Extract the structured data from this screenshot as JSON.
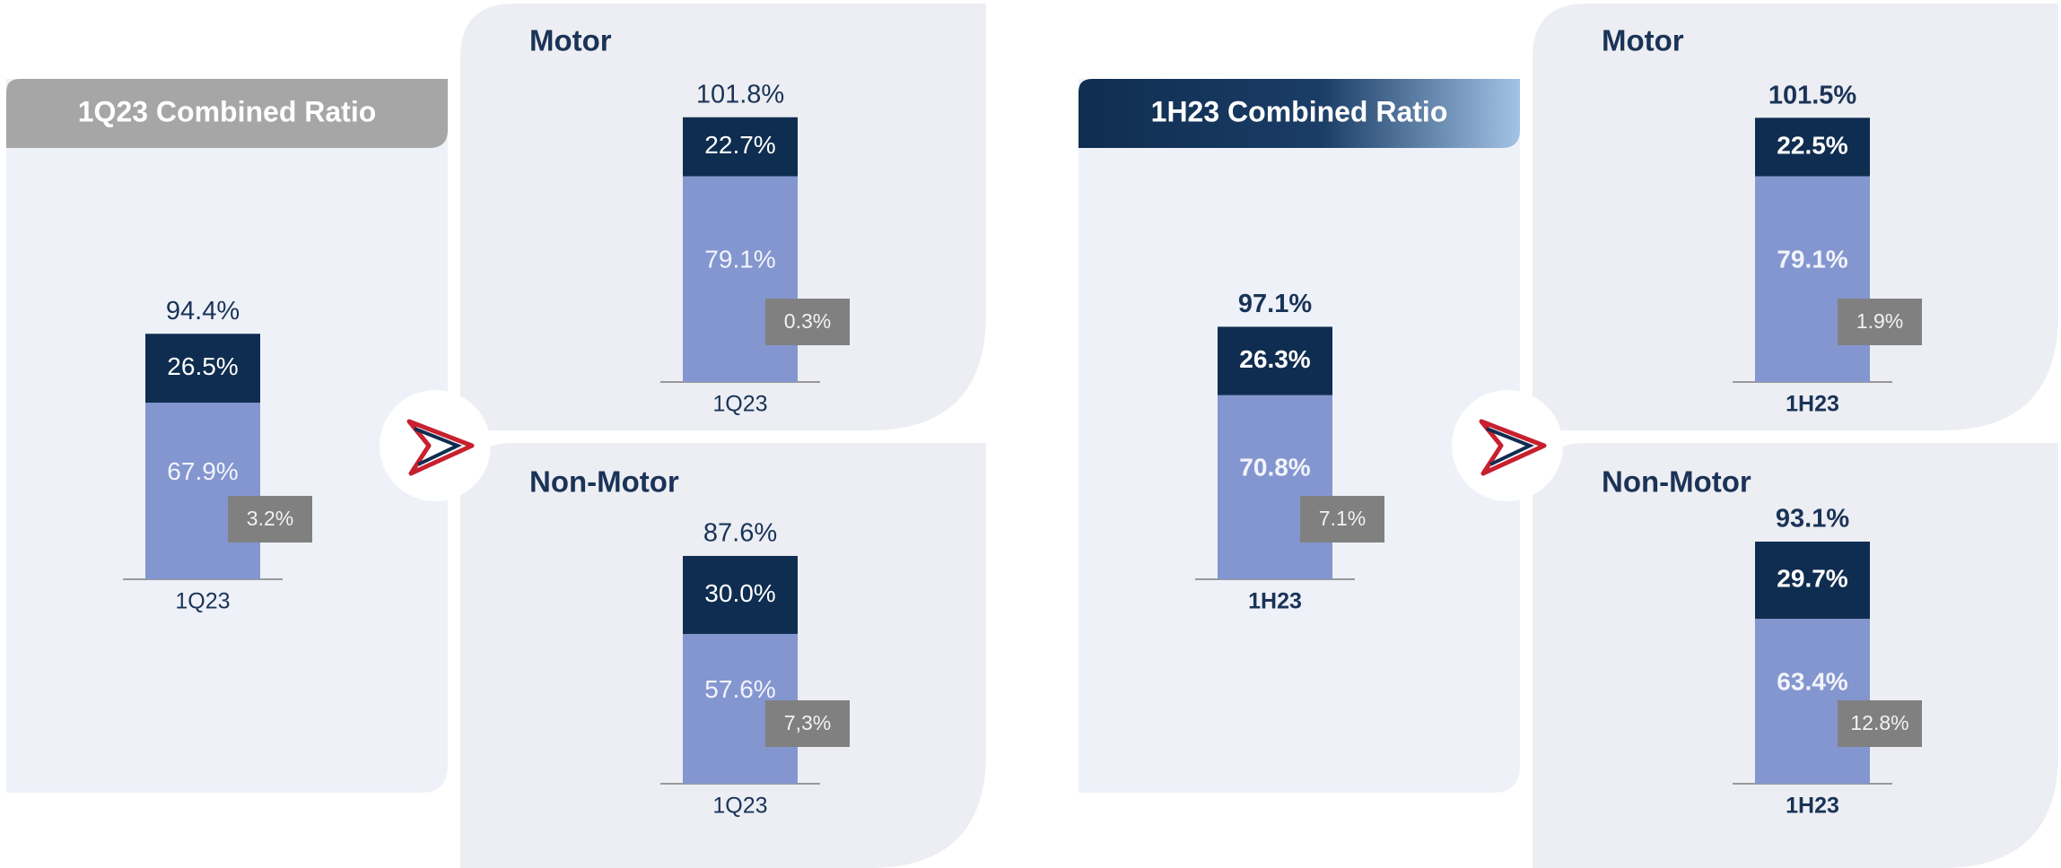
{
  "chart_data": [
    {
      "type": "bar",
      "title": "1Q23 Combined Ratio",
      "categories": [
        "1Q23"
      ],
      "bold_labels": false,
      "series": [
        {
          "color": "#8496d0",
          "values": [
            67.9
          ],
          "value_labels": [
            "67.9%"
          ]
        },
        {
          "color": "#0f2d50",
          "values": [
            26.5
          ],
          "value_labels": [
            "26.5%"
          ]
        }
      ],
      "total": 94.4,
      "total_label": "94.4%",
      "inset": {
        "value": 3.2,
        "label": "3.2%",
        "color": "#808080"
      }
    },
    {
      "type": "bar",
      "title": "Motor",
      "categories": [
        "1Q23"
      ],
      "bold_labels": false,
      "series": [
        {
          "color": "#8496d0",
          "values": [
            79.1
          ],
          "value_labels": [
            "79.1%"
          ]
        },
        {
          "color": "#0f2d50",
          "values": [
            22.7
          ],
          "value_labels": [
            "22.7%"
          ]
        }
      ],
      "total": 101.8,
      "total_label": "101.8%",
      "inset": {
        "value": 0.3,
        "label": "0.3%",
        "color": "#808080"
      }
    },
    {
      "type": "bar",
      "title": "Non-Motor",
      "categories": [
        "1Q23"
      ],
      "bold_labels": false,
      "series": [
        {
          "color": "#8496d0",
          "values": [
            57.6
          ],
          "value_labels": [
            "57.6%"
          ]
        },
        {
          "color": "#0f2d50",
          "values": [
            30.0
          ],
          "value_labels": [
            "30.0%"
          ]
        }
      ],
      "total": 87.6,
      "total_label": "87.6%",
      "inset": {
        "value": 7.3,
        "label": "7,3%",
        "color": "#808080"
      }
    },
    {
      "type": "bar",
      "title": "1H23 Combined Ratio",
      "categories": [
        "1H23"
      ],
      "bold_labels": true,
      "series": [
        {
          "color": "#8496d0",
          "values": [
            70.8
          ],
          "value_labels": [
            "70.8%"
          ]
        },
        {
          "color": "#0f2d50",
          "values": [
            26.3
          ],
          "value_labels": [
            "26.3%"
          ]
        }
      ],
      "total": 97.1,
      "total_label": "97.1%",
      "inset": {
        "value": 7.1,
        "label": "7.1%",
        "color": "#808080"
      }
    },
    {
      "type": "bar",
      "title": "Motor",
      "categories": [
        "1H23"
      ],
      "bold_labels": true,
      "series": [
        {
          "color": "#8496d0",
          "values": [
            79.1
          ],
          "value_labels": [
            "79.1%"
          ]
        },
        {
          "color": "#0f2d50",
          "values": [
            22.5
          ],
          "value_labels": [
            "22.5%"
          ]
        }
      ],
      "total": 101.5,
      "total_label": "101.5%",
      "inset": {
        "value": 1.9,
        "label": "1.9%",
        "color": "#808080"
      }
    },
    {
      "type": "bar",
      "title": "Non-Motor",
      "categories": [
        "1H23"
      ],
      "bold_labels": true,
      "series": [
        {
          "color": "#8496d0",
          "values": [
            63.4
          ],
          "value_labels": [
            "63.4%"
          ]
        },
        {
          "color": "#0f2d50",
          "values": [
            29.7
          ],
          "value_labels": [
            "29.7%"
          ]
        }
      ],
      "total": 93.1,
      "total_label": "93.1%",
      "inset": {
        "value": 12.8,
        "label": "12.8%",
        "color": "#808080"
      }
    }
  ]
}
